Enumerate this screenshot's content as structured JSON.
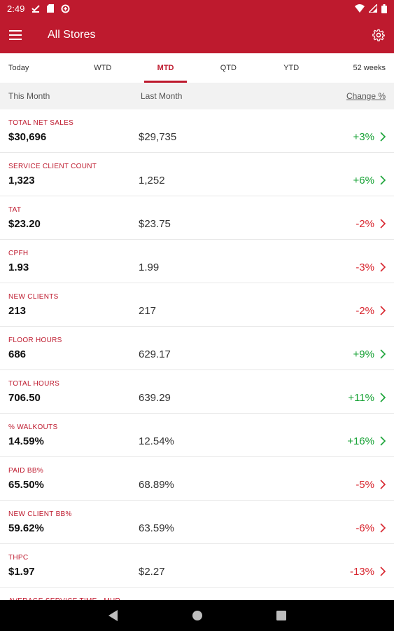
{
  "status_bar": {
    "time": "2:49",
    "icons_left": [
      "download-done-icon",
      "sd-card-icon",
      "data-saver-icon"
    ],
    "icons_right": [
      "wifi-icon",
      "signal-icon",
      "battery-icon"
    ]
  },
  "app_bar": {
    "title": "All Stores",
    "menu_icon": "hamburger-menu-icon",
    "settings_icon": "gear-icon"
  },
  "tabs": [
    {
      "label": "Today",
      "active": false
    },
    {
      "label": "WTD",
      "active": false
    },
    {
      "label": "MTD",
      "active": true
    },
    {
      "label": "QTD",
      "active": false
    },
    {
      "label": "YTD",
      "active": false
    },
    {
      "label": "52 weeks",
      "active": false
    }
  ],
  "columns": {
    "this_month": "This Month",
    "last_month": "Last Month",
    "change": "Change %"
  },
  "metrics": [
    {
      "label": "TOTAL NET SALES",
      "this_month": "$30,696",
      "last_month": "$29,735",
      "change": "+3%",
      "trend": "up"
    },
    {
      "label": "SERVICE CLIENT COUNT",
      "this_month": "1,323",
      "last_month": "1,252",
      "change": "+6%",
      "trend": "up"
    },
    {
      "label": "TAT",
      "this_month": "$23.20",
      "last_month": "$23.75",
      "change": "-2%",
      "trend": "down"
    },
    {
      "label": "CPFH",
      "this_month": "1.93",
      "last_month": "1.99",
      "change": "-3%",
      "trend": "down"
    },
    {
      "label": "NEW CLIENTS",
      "this_month": "213",
      "last_month": "217",
      "change": "-2%",
      "trend": "down"
    },
    {
      "label": "FLOOR HOURS",
      "this_month": "686",
      "last_month": "629.17",
      "change": "+9%",
      "trend": "up"
    },
    {
      "label": "TOTAL HOURS",
      "this_month": "706.50",
      "last_month": "639.29",
      "change": "+11%",
      "trend": "up"
    },
    {
      "label": "% WALKOUTS",
      "this_month": "14.59%",
      "last_month": "12.54%",
      "change": "+16%",
      "trend": "up"
    },
    {
      "label": "PAID BB%",
      "this_month": "65.50%",
      "last_month": "68.89%",
      "change": "-5%",
      "trend": "down"
    },
    {
      "label": "NEW CLIENT BB%",
      "this_month": "59.62%",
      "last_month": "63.59%",
      "change": "-6%",
      "trend": "down"
    },
    {
      "label": "THPC",
      "this_month": "$1.97",
      "last_month": "$2.27",
      "change": "-13%",
      "trend": "down"
    },
    {
      "label": "AVERAGE SERVICE TIME - MHR",
      "this_month": "",
      "last_month": "",
      "change": "",
      "trend": ""
    }
  ],
  "colors": {
    "brand": "#be1a2e",
    "positive": "#19a337",
    "negative": "#d8262f"
  },
  "nav_bar": {
    "icons": [
      "back-icon",
      "home-icon",
      "recents-icon"
    ]
  }
}
